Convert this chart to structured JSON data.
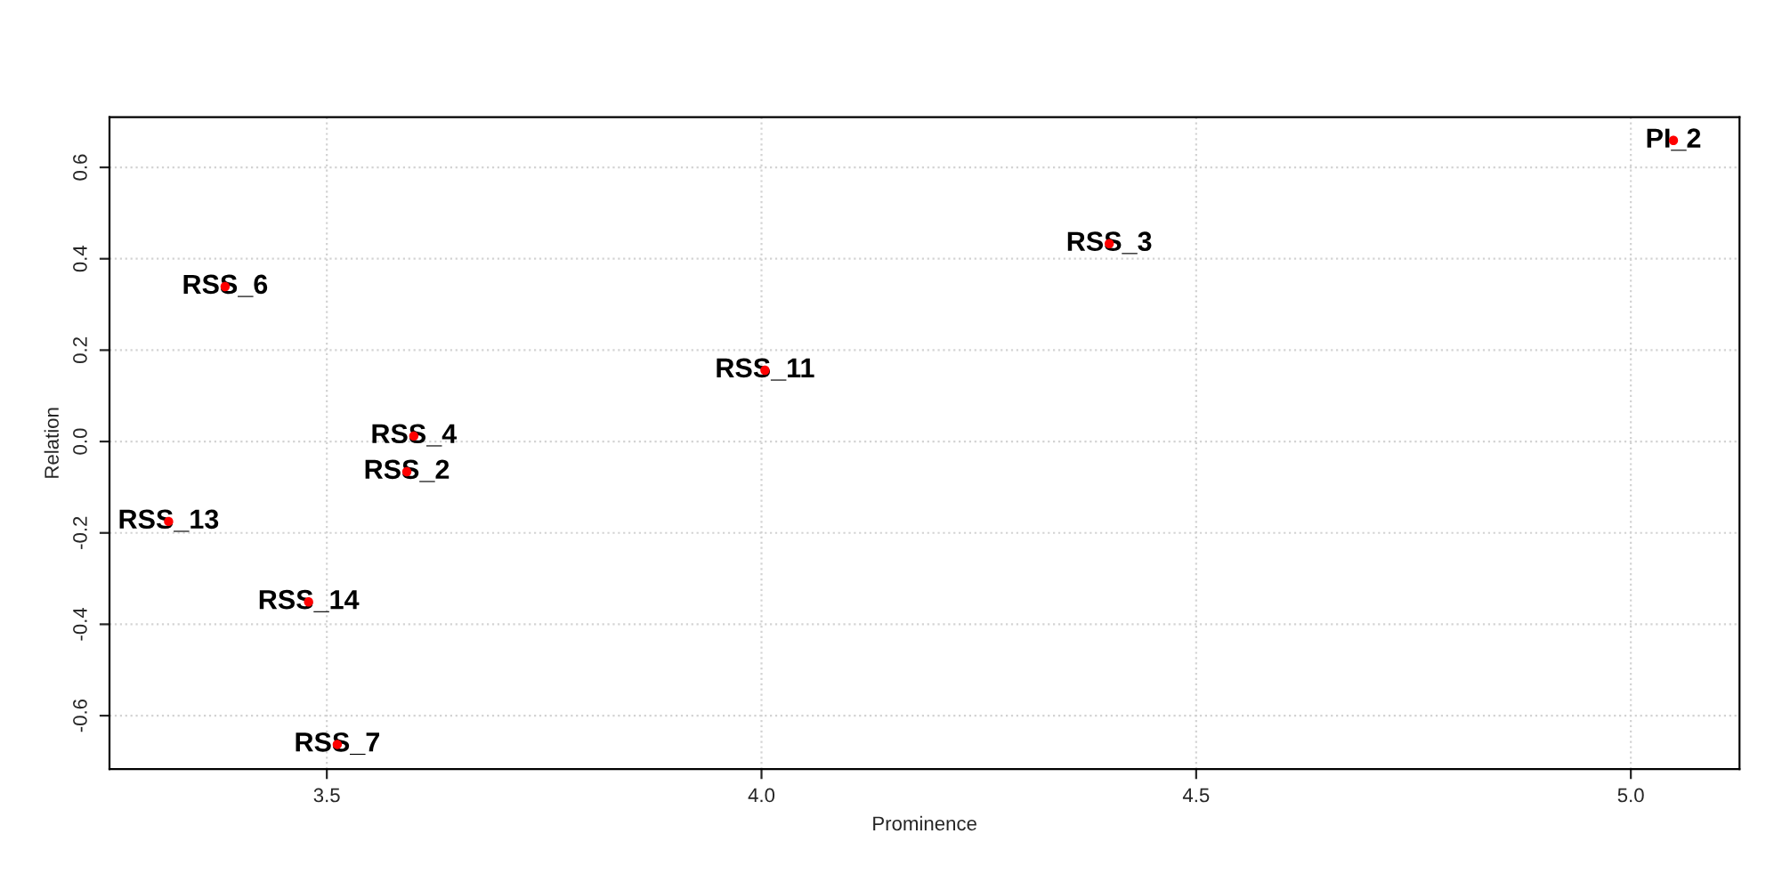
{
  "chart_data": {
    "type": "scatter",
    "xlabel": "Prominence",
    "ylabel": "Relation",
    "x": [
      5.049,
      4.4,
      3.383,
      4.004,
      3.6,
      3.592,
      3.318,
      3.479,
      3.512
    ],
    "series": [
      {
        "color": "#ff0000",
        "values": [
          0.659,
          0.433,
          0.339,
          0.156,
          0.012,
          -0.066,
          -0.175,
          -0.351,
          -0.663
        ]
      }
    ],
    "annotations": [
      {
        "text": "PI_2",
        "x": 5.049,
        "y": 0.659
      },
      {
        "text": "RSS_3",
        "x": 4.4,
        "y": 0.433
      },
      {
        "text": "RSS_6",
        "x": 3.383,
        "y": 0.339
      },
      {
        "text": "RSS_11",
        "x": 4.004,
        "y": 0.156
      },
      {
        "text": "RSS_4",
        "x": 3.6,
        "y": 0.012
      },
      {
        "text": "RSS_2",
        "x": 3.592,
        "y": -0.066
      },
      {
        "text": "RSS_13",
        "x": 3.318,
        "y": -0.175
      },
      {
        "text": "RSS_14",
        "x": 3.479,
        "y": -0.351
      },
      {
        "text": "RSS_7",
        "x": 3.512,
        "y": -0.663
      }
    ],
    "xlim": [
      3.25,
      5.125
    ],
    "ylim": [
      -0.717,
      0.71
    ],
    "xticks": [
      3.5,
      {
        "value": 4.0,
        "label": "4.0"
      },
      4.5,
      {
        "value": 5.0,
        "label": "5.0"
      }
    ],
    "yticks": [
      -0.6,
      -0.4,
      -0.2,
      {
        "value": 0.0,
        "label": "0.0"
      },
      0.2,
      0.4,
      0.6
    ],
    "grid": true,
    "marker": "circle"
  }
}
